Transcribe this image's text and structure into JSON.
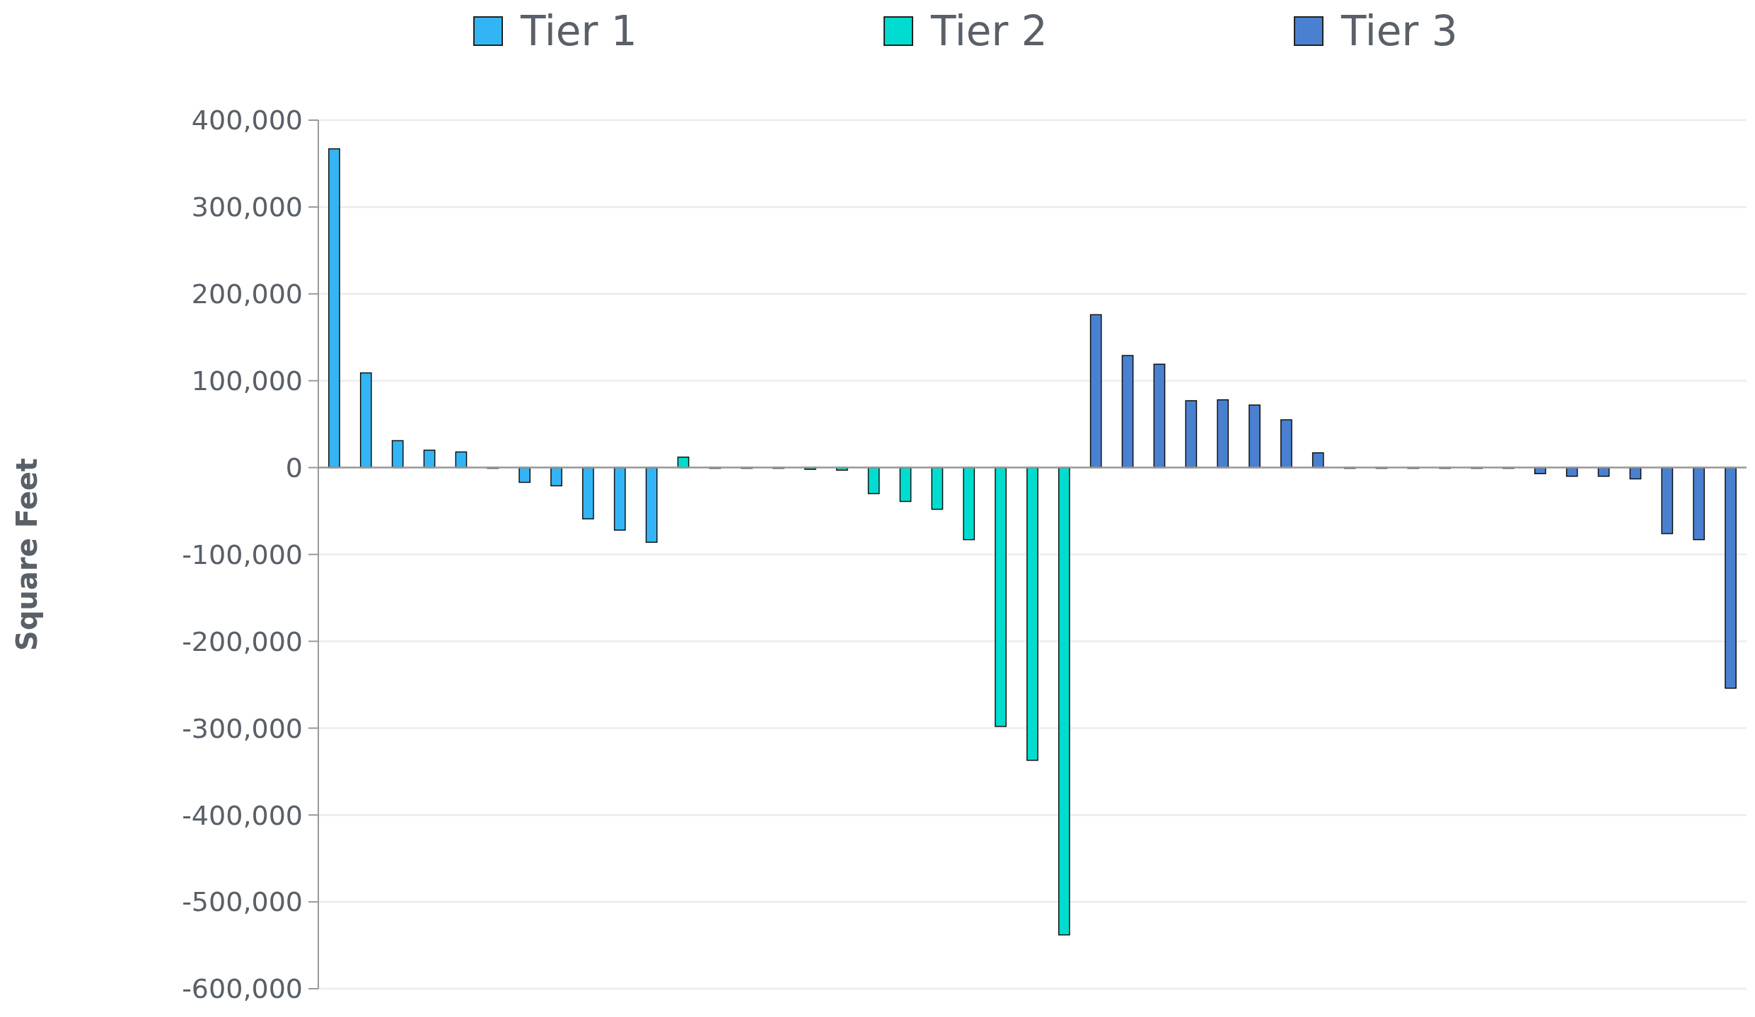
{
  "chart_data": {
    "type": "bar",
    "ylabel": "Square Feet",
    "legend": "top",
    "grid": "y",
    "categories": [
      null,
      null,
      null,
      null,
      null,
      null,
      null,
      null,
      null,
      null,
      null,
      null,
      null,
      null,
      null,
      null,
      null,
      null,
      null,
      null,
      null,
      null,
      null,
      null,
      null,
      null,
      null,
      null,
      null,
      null,
      null,
      null,
      null,
      null,
      null,
      null,
      null,
      null,
      null,
      null,
      null,
      null,
      null,
      null,
      null
    ],
    "ylim": [
      -600000,
      400000
    ],
    "yticks": [
      {
        "value": -600000,
        "label": "-600,000"
      },
      {
        "value": -500000,
        "label": "-500,000"
      },
      {
        "value": -400000,
        "label": "-400,000"
      },
      {
        "value": -300000,
        "label": "-300,000"
      },
      {
        "value": -200000,
        "label": "-200,000"
      },
      {
        "value": -100000,
        "label": "-100,000"
      },
      0,
      {
        "value": 100000,
        "label": "100,000"
      },
      {
        "value": 200000,
        "label": "200,000"
      },
      {
        "value": 300000,
        "label": "300,000"
      },
      {
        "value": 400000,
        "label": "400,000"
      }
    ],
    "series": [
      {
        "name": "Tier 1",
        "color": "#33b5f5",
        "values": [
          367000,
          109000,
          31000,
          20000,
          18000,
          0,
          -17000,
          -21000,
          -59000,
          -72000,
          -86000,
          null,
          null,
          null,
          null,
          null,
          null,
          null,
          null,
          null,
          null,
          null,
          null,
          null,
          null,
          null,
          null,
          null,
          null,
          null,
          null,
          null,
          null,
          null,
          null,
          null,
          null,
          null,
          null,
          null,
          null,
          null,
          null,
          null,
          null
        ]
      },
      {
        "name": "Tier 2",
        "color": "#00dccf",
        "values": [
          null,
          null,
          null,
          null,
          null,
          null,
          null,
          null,
          null,
          null,
          null,
          12000,
          0,
          0,
          0,
          -2000,
          -3000,
          -30000,
          -39000,
          -48000,
          -83000,
          -298000,
          -337000,
          -538000,
          null,
          null,
          null,
          null,
          null,
          null,
          null,
          null,
          null,
          null,
          null,
          null,
          null,
          null,
          null,
          null,
          null,
          null,
          null,
          null,
          null
        ]
      },
      {
        "name": "Tier 3",
        "color": "#4a80d0",
        "values": [
          null,
          null,
          null,
          null,
          null,
          null,
          null,
          null,
          null,
          null,
          null,
          null,
          null,
          null,
          null,
          null,
          null,
          null,
          null,
          null,
          null,
          null,
          null,
          null,
          176000,
          129000,
          119000,
          77000,
          78000,
          72000,
          55000,
          17000,
          0,
          0,
          0,
          0,
          0,
          0,
          -7000,
          -10000,
          -10000,
          -13000,
          -76000,
          -83000,
          -254000
        ]
      }
    ]
  }
}
